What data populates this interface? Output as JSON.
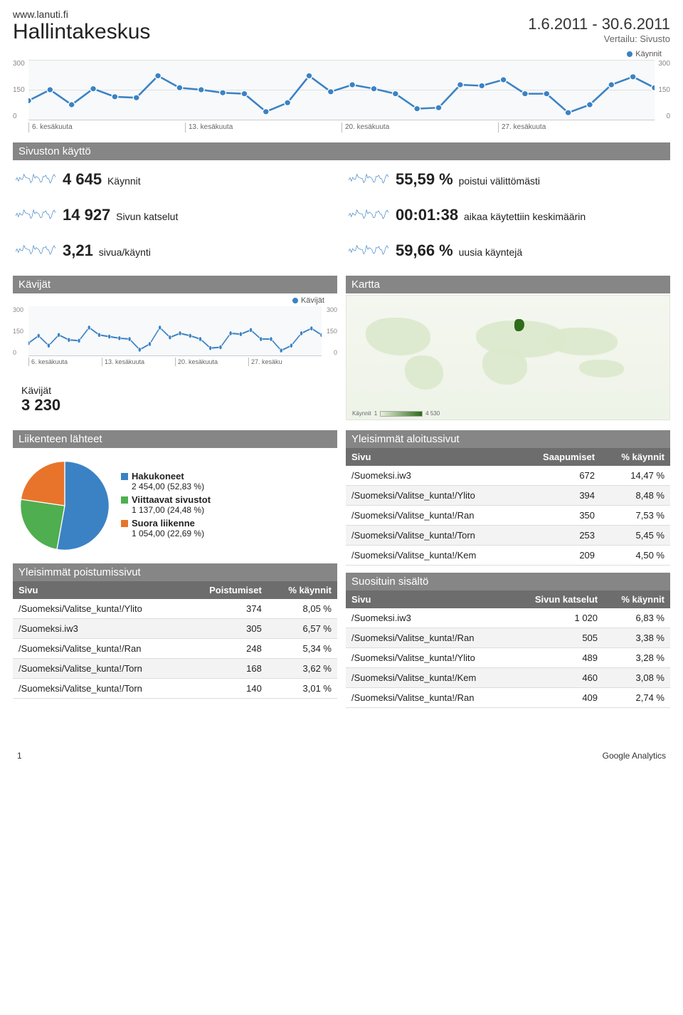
{
  "header": {
    "site": "www.lanuti.fi",
    "title": "Hallintakeskus",
    "date_range": "1.6.2011 - 30.6.2011",
    "compare": "Vertailu: Sivusto"
  },
  "colors": {
    "line": "#3b82c4",
    "point_fill": "#3b82c4",
    "section_bar": "#868686",
    "pie": {
      "search": "#3b82c4",
      "referral": "#4fae4f",
      "direct": "#e8742c"
    }
  },
  "main_chart": {
    "legend": "Käynnit",
    "y_ticks": [
      "300",
      "150",
      "0"
    ],
    "x_ticks": [
      "6. kesäkuuta",
      "13. kesäkuuta",
      "20. kesäkuuta",
      "27. kesäkuuta"
    ],
    "values": [
      95,
      150,
      75,
      155,
      115,
      110,
      220,
      160,
      150,
      135,
      130,
      40,
      85,
      220,
      140,
      175,
      155,
      130,
      55,
      60,
      175,
      170,
      200,
      130,
      130,
      35,
      75,
      175,
      215,
      160
    ],
    "ymax": 300
  },
  "site_usage": {
    "title": "Sivuston käyttö",
    "metrics": [
      {
        "value": "4 645",
        "label": "Käynnit"
      },
      {
        "value": "55,59 %",
        "label": "poistui välittömästi"
      },
      {
        "value": "14 927",
        "label": "Sivun katselut"
      },
      {
        "value": "00:01:38",
        "label": "aikaa käytettiin keskimäärin"
      },
      {
        "value": "3,21",
        "label": "sivua/käynti"
      },
      {
        "value": "59,66 %",
        "label": "uusia käyntejä"
      }
    ]
  },
  "visitors_panel": {
    "title": "Kävijät",
    "legend": "Kävijät",
    "y_ticks": [
      "300",
      "150",
      "0"
    ],
    "x_ticks": [
      "6. kesäkuuta",
      "13. kesäkuuta",
      "20. kesäkuuta",
      "27. kesäku"
    ],
    "values": [
      75,
      120,
      60,
      125,
      95,
      90,
      170,
      125,
      115,
      105,
      100,
      35,
      70,
      170,
      110,
      135,
      120,
      100,
      45,
      50,
      135,
      130,
      155,
      100,
      100,
      30,
      60,
      135,
      165,
      125
    ],
    "ymax": 300,
    "total_label": "Kävijät",
    "total_value": "3 230"
  },
  "map_panel": {
    "title": "Kartta",
    "legend_label": "Käynnit",
    "legend_min": "1",
    "legend_max": "4 530"
  },
  "traffic_sources": {
    "title": "Liikenteen lähteet",
    "items": [
      {
        "name": "Hakukoneet",
        "detail": "2 454,00 (52,83 %)",
        "color": "#3b82c4",
        "pct": 52.83
      },
      {
        "name": "Viittaavat sivustot",
        "detail": "1 137,00 (24,48 %)",
        "color": "#4fae4f",
        "pct": 24.48
      },
      {
        "name": "Suora liikenne",
        "detail": "1 054,00 (22,69 %)",
        "color": "#e8742c",
        "pct": 22.69
      }
    ]
  },
  "exit_pages": {
    "title": "Yleisimmät poistumissivut",
    "columns": [
      "Sivu",
      "Poistumiset",
      "% käynnit"
    ],
    "rows": [
      [
        "/Suomeksi/Valitse_kunta!/Ylito",
        "374",
        "8,05 %"
      ],
      [
        "/Suomeksi.iw3",
        "305",
        "6,57 %"
      ],
      [
        "/Suomeksi/Valitse_kunta!/Ran",
        "248",
        "5,34 %"
      ],
      [
        "/Suomeksi/Valitse_kunta!/Torn",
        "168",
        "3,62 %"
      ],
      [
        "/Suomeksi/Valitse_kunta!/Torn",
        "140",
        "3,01 %"
      ]
    ]
  },
  "landing_pages": {
    "title": "Yleisimmät aloitussivut",
    "columns": [
      "Sivu",
      "Saapumiset",
      "% käynnit"
    ],
    "rows": [
      [
        "/Suomeksi.iw3",
        "672",
        "14,47 %"
      ],
      [
        "/Suomeksi/Valitse_kunta!/Ylito",
        "394",
        "8,48 %"
      ],
      [
        "/Suomeksi/Valitse_kunta!/Ran",
        "350",
        "7,53 %"
      ],
      [
        "/Suomeksi/Valitse_kunta!/Torn",
        "253",
        "5,45 %"
      ],
      [
        "/Suomeksi/Valitse_kunta!/Kem",
        "209",
        "4,50 %"
      ]
    ]
  },
  "top_content": {
    "title": "Suosituin sisältö",
    "columns": [
      "Sivu",
      "Sivun katselut",
      "% käynnit"
    ],
    "rows": [
      [
        "/Suomeksi.iw3",
        "1 020",
        "6,83 %"
      ],
      [
        "/Suomeksi/Valitse_kunta!/Ran",
        "505",
        "3,38 %"
      ],
      [
        "/Suomeksi/Valitse_kunta!/Ylito",
        "489",
        "3,28 %"
      ],
      [
        "/Suomeksi/Valitse_kunta!/Kem",
        "460",
        "3,08 %"
      ],
      [
        "/Suomeksi/Valitse_kunta!/Ran",
        "409",
        "2,74 %"
      ]
    ]
  },
  "footer": {
    "page": "1",
    "brand": "Google Analytics"
  }
}
